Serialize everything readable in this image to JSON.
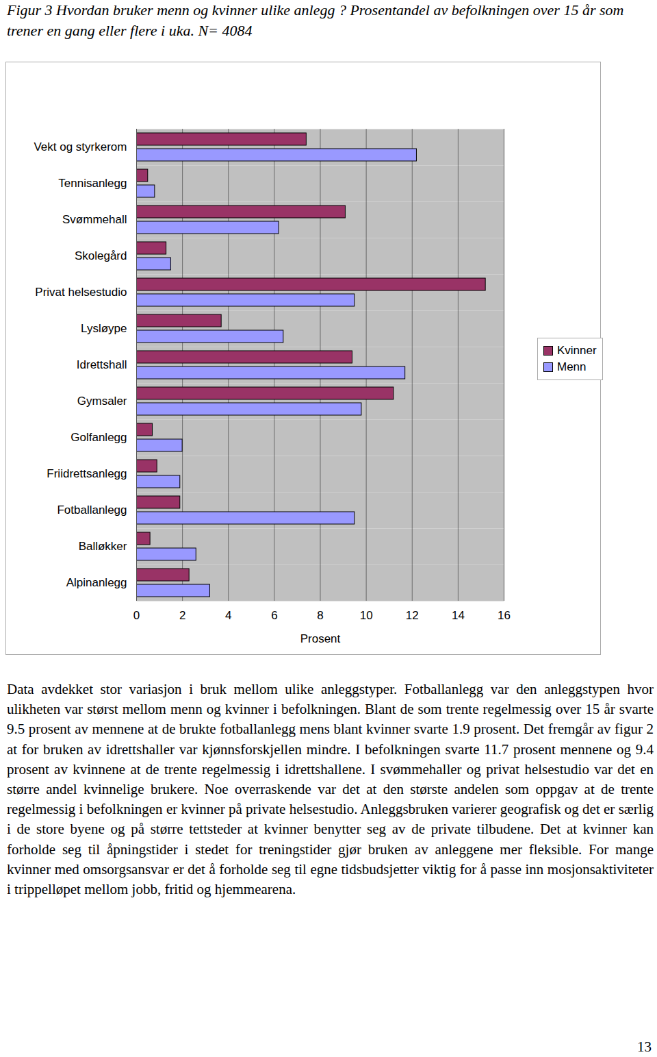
{
  "chart_data": {
    "type": "bar",
    "orientation": "horizontal",
    "title": "Figur 3 Hvordan bruker menn og kvinner ulike anlegg ? Prosentandel av befolkningen over 15 år som trener en gang eller flere i uka. N= 4084",
    "categories": [
      "Vekt og styrkerom",
      "Tennisanlegg",
      "Svømmehall",
      "Skolegård",
      "Privat helsestudio",
      "Lysløype",
      "Idrettshall",
      "Gymsaler",
      "Golfanlegg",
      "Friidrettsanlegg",
      "Fotballanlegg",
      "Balløkker",
      "Alpinanlegg"
    ],
    "series": [
      {
        "name": "Kvinner",
        "color": "#993366",
        "values": [
          7.4,
          0.5,
          9.1,
          1.3,
          15.2,
          3.7,
          9.4,
          11.2,
          0.7,
          0.9,
          1.9,
          0.6,
          2.3
        ]
      },
      {
        "name": "Menn",
        "color": "#9999ff",
        "values": [
          12.2,
          0.8,
          6.2,
          1.5,
          9.5,
          6.4,
          11.7,
          9.8,
          2.0,
          1.9,
          9.5,
          2.6,
          3.2
        ]
      }
    ],
    "xlabel": "Prosent",
    "xlim": [
      0,
      16
    ],
    "xticks": [
      0,
      2,
      4,
      6,
      8,
      10,
      12,
      14,
      16
    ],
    "grid": true,
    "legend": "right"
  },
  "text": "Data avdekket stor variasjon i bruk mellom ulike anleggstyper. Fotballanlegg var den anleggstypen hvor ulikheten var størst mellom menn og kvinner i befolkningen. Blant de som trente regelmessig over 15 år svarte 9.5 prosent av mennene at de brukte fotballanlegg mens blant kvinner svarte 1.9 prosent. Det fremgår av figur 2 at for bruken av idrettshaller var kjønnsforskjellen mindre. I befolkningen svarte 11.7 prosent mennene og 9.4 prosent av kvinnene at de trente regelmessig i idrettshallene. I svømmehaller og privat helsestudio var det en større andel kvinnelige brukere. Noe overraskende var det at den største andelen som oppgav at de trente regelmessig i befolkningen er kvinner på private helsestudio. Anleggsbruken varierer geografisk og det er særlig i de store byene og på større tettsteder at kvinner benytter seg av de private tilbudene. Det at kvinner kan forholde seg til åpningstider i stedet for treningstider gjør bruken av anleggene mer fleksible. For mange kvinner med omsorgsansvar er det å forholde seg til egne tidsbudsjetter viktig for å passe inn mosjonsaktiviteter i trippelløpet mellom jobb, fritid og hjemmearena.",
  "page_number": 13
}
